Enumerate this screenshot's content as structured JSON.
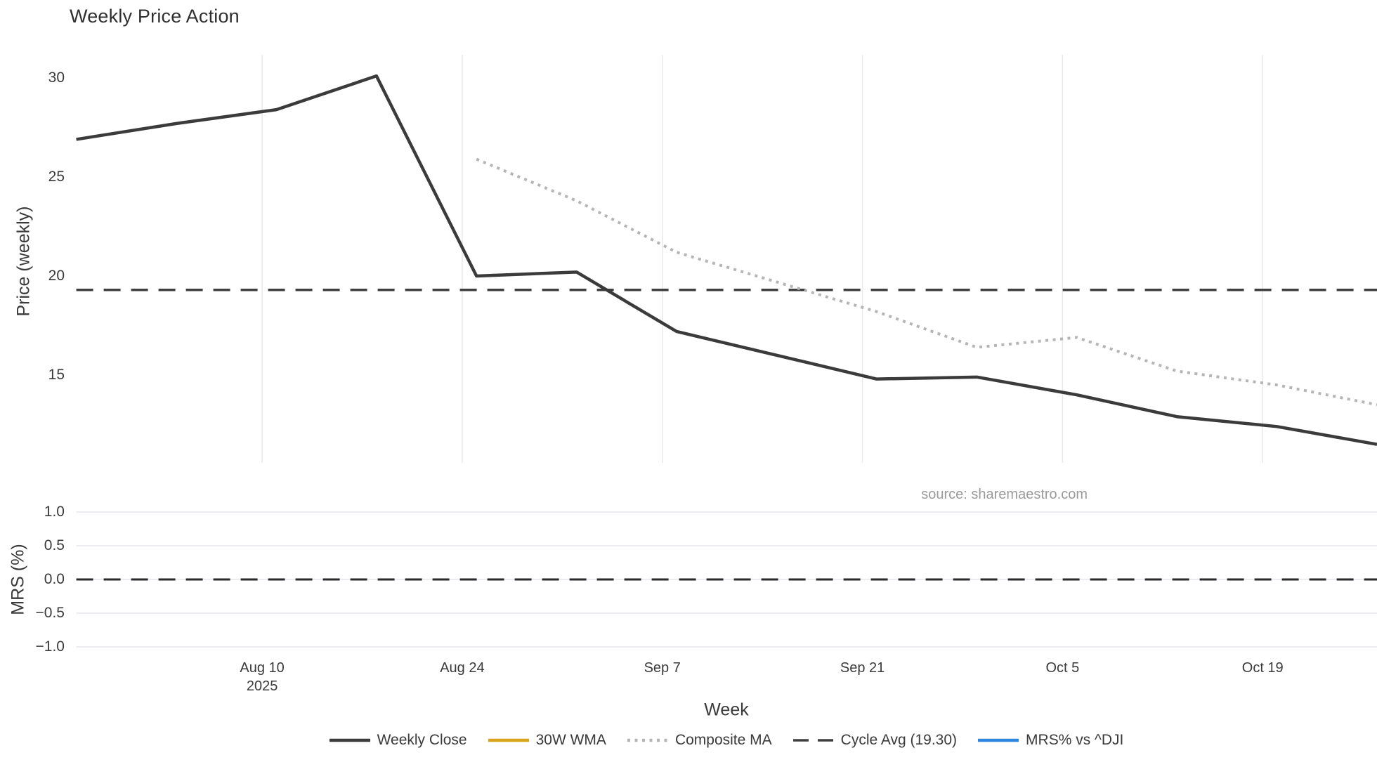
{
  "title": "Weekly Price Action",
  "source": "source: sharemaestro.com",
  "axes": {
    "price": {
      "title": "Price (weekly)",
      "ticks": [
        {
          "label": "30",
          "value": 30
        },
        {
          "label": "25",
          "value": 25
        },
        {
          "label": "20",
          "value": 20
        },
        {
          "label": "15",
          "value": 15
        }
      ]
    },
    "mrs": {
      "title": "MRS (%)",
      "ticks": [
        {
          "label": "1.0",
          "value": 1.0
        },
        {
          "label": "0.5",
          "value": 0.5
        },
        {
          "label": "0.0",
          "value": 0.0
        },
        {
          "label": "−0.5",
          "value": -0.5
        },
        {
          "label": "−1.0",
          "value": -1.0
        }
      ]
    },
    "week": {
      "title": "Week",
      "ticks": [
        {
          "label": "Aug 10",
          "sublabel": "2025",
          "day_offset": 13
        },
        {
          "label": "Aug 24",
          "day_offset": 27
        },
        {
          "label": "Sep 7",
          "day_offset": 41
        },
        {
          "label": "Sep 21",
          "day_offset": 55
        },
        {
          "label": "Oct 5",
          "day_offset": 69
        },
        {
          "label": "Oct 19",
          "day_offset": 83
        }
      ]
    }
  },
  "legend": [
    {
      "label": "Weekly Close",
      "color": "#3b3b3b",
      "style": "solid"
    },
    {
      "label": "30W WMA",
      "color": "#d9a418",
      "style": "solid"
    },
    {
      "label": "Composite MA",
      "color": "#b5b5b5",
      "style": "dotted"
    },
    {
      "label": "Cycle Avg (19.30)",
      "color": "#3f3f3f",
      "style": "dashed"
    },
    {
      "label": "MRS% vs ^DJI",
      "color": "#2d86e0",
      "style": "solid"
    }
  ],
  "chart_data": {
    "type": "line",
    "title": "Weekly Price Action",
    "xlabel": "Week",
    "x_dates": [
      "2025-07-28",
      "2025-08-04",
      "2025-08-11",
      "2025-08-18",
      "2025-08-25",
      "2025-09-01",
      "2025-09-08",
      "2025-09-15",
      "2025-09-22",
      "2025-09-29",
      "2025-10-06",
      "2025-10-13",
      "2025-10-20",
      "2025-10-27"
    ],
    "x_tick_labels": [
      "Aug 10 2025",
      "Aug 24",
      "Sep 7",
      "Sep 21",
      "Oct 5",
      "Oct 19"
    ],
    "legend_position": "bottom-center",
    "panels": [
      {
        "name": "price",
        "ylabel": "Price (weekly)",
        "ylim": [
          10.6,
          31.3
        ],
        "grid": "vertical-only",
        "series": [
          {
            "name": "Weekly Close",
            "color": "#3b3b3b",
            "style": "solid",
            "values": [
              26.9,
              27.7,
              28.4,
              30.1,
              20.0,
              20.2,
              17.2,
              16.0,
              14.8,
              14.9,
              14.0,
              12.9,
              12.4,
              11.5
            ]
          },
          {
            "name": "30W WMA",
            "color": "#d9a418",
            "style": "solid",
            "values": []
          },
          {
            "name": "Composite MA",
            "color": "#b5b5b5",
            "style": "dotted",
            "values": [
              null,
              null,
              null,
              null,
              25.9,
              23.8,
              21.2,
              19.7,
              18.2,
              16.4,
              16.9,
              15.2,
              14.5,
              13.5
            ]
          },
          {
            "name": "Cycle Avg (19.30)",
            "color": "#3f3f3f",
            "style": "dashed",
            "constant": 19.3
          }
        ]
      },
      {
        "name": "mrs",
        "ylabel": "MRS (%)",
        "ylim": [
          -1.15,
          1.18
        ],
        "grid": "horizontal-only",
        "series": [
          {
            "name": "MRS% vs ^DJI",
            "color": "#2d86e0",
            "style": "solid",
            "values": []
          },
          {
            "name": "zero-line",
            "color": "#2a2a2a",
            "style": "dashed",
            "constant": 0
          }
        ]
      }
    ]
  }
}
